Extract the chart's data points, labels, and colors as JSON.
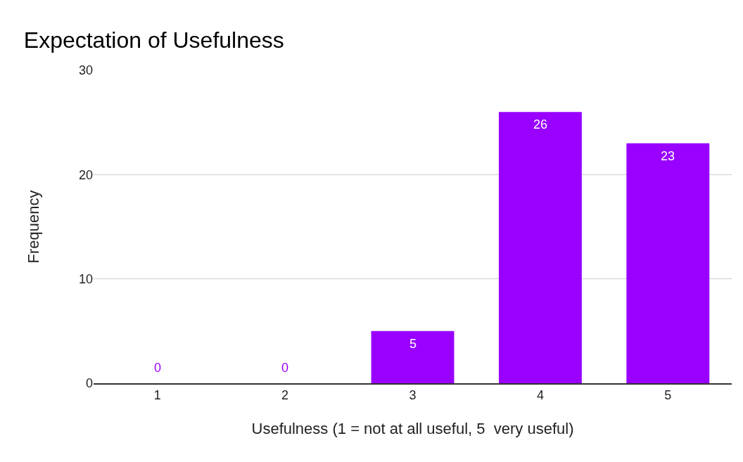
{
  "chart_data": {
    "type": "bar",
    "title": "Expectation of Usefulness",
    "xlabel": "Usefulness (1 = not at all useful, 5  very useful)",
    "ylabel": "Frequency",
    "categories": [
      "1",
      "2",
      "3",
      "4",
      "5"
    ],
    "values": [
      0,
      0,
      5,
      26,
      23
    ],
    "color": "#9900ff",
    "ylim": [
      0,
      30
    ],
    "yticks": [
      0,
      10,
      20,
      30
    ],
    "grid": "y",
    "data_labels": true
  }
}
